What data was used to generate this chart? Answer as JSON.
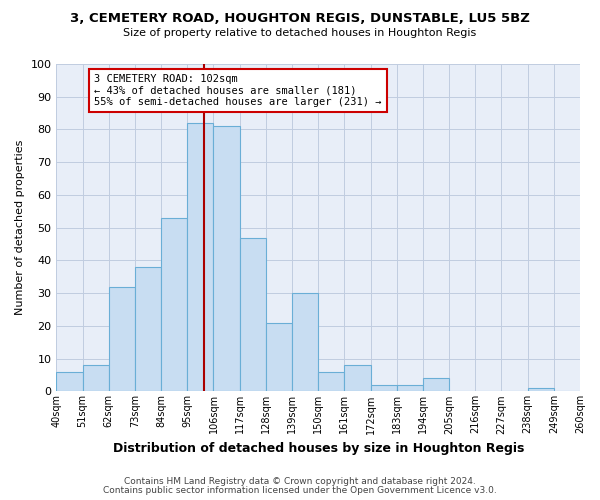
{
  "title1": "3, CEMETERY ROAD, HOUGHTON REGIS, DUNSTABLE, LU5 5BZ",
  "title2": "Size of property relative to detached houses in Houghton Regis",
  "xlabel": "Distribution of detached houses by size in Houghton Regis",
  "ylabel": "Number of detached properties",
  "bin_edges": [
    40,
    51,
    62,
    73,
    84,
    95,
    106,
    117,
    128,
    139,
    150,
    161,
    172,
    183,
    194,
    205,
    216,
    227,
    238,
    249,
    260
  ],
  "counts": [
    6,
    8,
    32,
    38,
    53,
    82,
    81,
    47,
    21,
    30,
    6,
    8,
    2,
    2,
    4,
    0,
    0,
    0,
    1,
    0
  ],
  "bar_color": "#c8ddf2",
  "bar_edge_color": "#6aaed6",
  "reference_line_x": 102,
  "reference_line_color": "#aa0000",
  "annotation_text": "3 CEMETERY ROAD: 102sqm\n← 43% of detached houses are smaller (181)\n55% of semi-detached houses are larger (231) →",
  "annotation_box_color": "#ffffff",
  "annotation_box_edge_color": "#cc0000",
  "ylim": [
    0,
    100
  ],
  "yticks": [
    0,
    10,
    20,
    30,
    40,
    50,
    60,
    70,
    80,
    90,
    100
  ],
  "tick_labels": [
    "40sqm",
    "51sqm",
    "62sqm",
    "73sqm",
    "84sqm",
    "95sqm",
    "106sqm",
    "117sqm",
    "128sqm",
    "139sqm",
    "150sqm",
    "161sqm",
    "172sqm",
    "183sqm",
    "194sqm",
    "205sqm",
    "216sqm",
    "227sqm",
    "238sqm",
    "249sqm",
    "260sqm"
  ],
  "footer1": "Contains HM Land Registry data © Crown copyright and database right 2024.",
  "footer2": "Contains public sector information licensed under the Open Government Licence v3.0.",
  "background_color": "#ffffff",
  "plot_bg_color": "#e8eef8",
  "grid_color": "#c0cce0"
}
